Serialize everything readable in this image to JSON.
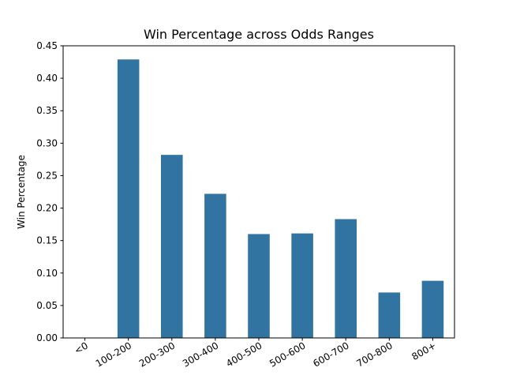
{
  "chart_data": {
    "type": "bar",
    "title": "Win Percentage across Odds Ranges",
    "xlabel": "",
    "ylabel": "Win Percentage",
    "categories": [
      "<0",
      "100-200",
      "200-300",
      "300-400",
      "400-500",
      "500-600",
      "600-700",
      "700-800",
      "800+"
    ],
    "values": [
      0.0,
      0.429,
      0.282,
      0.222,
      0.16,
      0.161,
      0.183,
      0.07,
      0.088
    ],
    "ylim": [
      0,
      0.45
    ],
    "yticks": [
      "0.00",
      "0.05",
      "0.10",
      "0.15",
      "0.20",
      "0.25",
      "0.30",
      "0.35",
      "0.40",
      "0.45"
    ],
    "grid": false,
    "legend": "none",
    "bar_color": "#3274a1",
    "xtick_rotation": "30deg"
  }
}
